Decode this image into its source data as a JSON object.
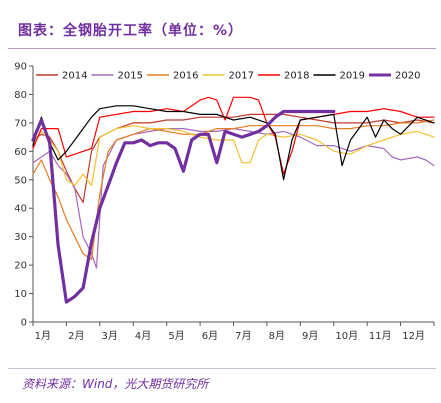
{
  "header": {
    "title": "图表：全钢胎开工率（单位：%）"
  },
  "footer": {
    "source": "资料来源：Wind，光大期货研究所"
  },
  "colors": {
    "title": "#7030a0"
  },
  "chart_data": {
    "type": "line",
    "title": "图表：全钢胎开工率（单位：%）",
    "xlabel": "",
    "ylabel": "",
    "ylim": [
      0,
      90
    ],
    "yticks": [
      0,
      10,
      20,
      30,
      40,
      50,
      60,
      70,
      80,
      90
    ],
    "xlim": [
      1,
      13
    ],
    "xtick_labels": [
      "1月",
      "2月",
      "3月",
      "4月",
      "5月",
      "6月",
      "7月",
      "8月",
      "9月",
      "10月",
      "11月",
      "12月"
    ],
    "grid": false,
    "legend_position": "top",
    "series": [
      {
        "name": "2014",
        "color": "#c0392b",
        "width": 1.2,
        "x": [
          1.0,
          1.25,
          1.5,
          1.75,
          2.0,
          2.25,
          2.5,
          2.75,
          3.0,
          3.5,
          4.0,
          4.5,
          5.0,
          5.5,
          6.0,
          6.5,
          7.0,
          7.5,
          8.0,
          8.5,
          9.0,
          9.5,
          10.0,
          10.5,
          11.0,
          11.5,
          12.0,
          12.5,
          13.0
        ],
        "y": [
          64,
          66,
          65,
          60,
          53,
          47,
          42,
          60,
          65,
          68,
          70,
          70,
          71,
          71,
          72,
          72,
          72,
          73,
          73,
          73,
          72,
          71,
          70,
          70,
          70,
          71,
          70,
          71,
          70
        ]
      },
      {
        "name": "2015",
        "color": "#a569bd",
        "width": 1.2,
        "x": [
          1.0,
          1.25,
          1.5,
          1.75,
          2.0,
          2.25,
          2.5,
          2.75,
          2.9,
          3.1,
          3.5,
          4.0,
          4.5,
          5.0,
          5.5,
          6.0,
          6.5,
          7.0,
          7.5,
          8.0,
          8.5,
          9.0,
          9.5,
          10.0,
          10.5,
          11.0,
          11.5,
          11.75,
          12.0,
          12.5,
          12.75,
          13.0
        ],
        "y": [
          56,
          58,
          60,
          55,
          52,
          47,
          30,
          24,
          19,
          55,
          64,
          66,
          67,
          68,
          68,
          67,
          67,
          68,
          67,
          66,
          67,
          65,
          62,
          62,
          60,
          62,
          61,
          58,
          57,
          58,
          57,
          55
        ]
      },
      {
        "name": "2016",
        "color": "#e67e22",
        "width": 1.2,
        "x": [
          1.0,
          1.25,
          1.5,
          1.75,
          2.0,
          2.25,
          2.5,
          2.75,
          3.0,
          3.25,
          3.5,
          4.0,
          4.5,
          5.0,
          5.5,
          6.0,
          6.5,
          7.0,
          7.5,
          8.0,
          8.5,
          9.0,
          9.5,
          10.0,
          10.5,
          11.0,
          11.5,
          12.0,
          12.5,
          13.0
        ],
        "y": [
          52,
          57,
          50,
          44,
          36,
          30,
          24,
          22,
          45,
          60,
          64,
          66,
          68,
          67,
          66,
          66,
          68,
          68,
          69,
          69,
          69,
          69,
          69,
          68,
          68,
          69,
          69,
          70,
          70,
          71
        ]
      },
      {
        "name": "2017",
        "color": "#f1c232",
        "width": 1.2,
        "x": [
          1.0,
          1.25,
          1.5,
          1.75,
          2.0,
          2.25,
          2.5,
          2.75,
          3.0,
          3.5,
          4.0,
          4.5,
          5.0,
          5.5,
          6.0,
          6.5,
          7.0,
          7.25,
          7.5,
          7.75,
          8.0,
          8.5,
          9.0,
          9.5,
          10.0,
          10.5,
          11.0,
          11.5,
          12.0,
          12.5,
          13.0
        ],
        "y": [
          63,
          67,
          64,
          60,
          50,
          48,
          52,
          48,
          65,
          68,
          69,
          68,
          68,
          67,
          65,
          64,
          64,
          56,
          56,
          64,
          66,
          65,
          66,
          64,
          60,
          59,
          62,
          64,
          66,
          67,
          65
        ]
      },
      {
        "name": "2018",
        "color": "#ff0000",
        "width": 1.2,
        "x": [
          1.0,
          1.25,
          1.5,
          1.75,
          2.0,
          2.25,
          2.5,
          2.75,
          3.0,
          3.5,
          4.0,
          4.5,
          5.0,
          5.5,
          6.0,
          6.25,
          6.5,
          6.75,
          7.0,
          7.25,
          7.5,
          7.75,
          8.0,
          8.25,
          8.5,
          8.75,
          9.0,
          9.5,
          10.0,
          10.5,
          11.0,
          11.5,
          12.0,
          12.5,
          13.0
        ],
        "y": [
          61,
          68,
          68,
          68,
          58,
          59,
          60,
          61,
          72,
          73,
          74,
          74,
          75,
          74,
          78,
          79,
          78,
          71,
          79,
          79,
          79,
          78,
          70,
          65,
          52,
          60,
          71,
          72,
          73,
          74,
          74,
          75,
          74,
          72,
          72
        ]
      },
      {
        "name": "2019",
        "color": "#000000",
        "width": 1.2,
        "x": [
          1.0,
          1.25,
          1.5,
          1.75,
          2.0,
          2.25,
          2.5,
          2.75,
          3.0,
          3.5,
          4.0,
          4.5,
          5.0,
          5.5,
          6.0,
          6.5,
          7.0,
          7.5,
          8.0,
          8.25,
          8.5,
          8.75,
          9.0,
          9.5,
          10.0,
          10.25,
          10.5,
          10.75,
          11.0,
          11.25,
          11.5,
          11.75,
          12.0,
          12.5,
          13.0
        ],
        "y": [
          62,
          72,
          63,
          57,
          60,
          64,
          68,
          72,
          75,
          76,
          76,
          75,
          74,
          74,
          73,
          73,
          71,
          72,
          70,
          66,
          50,
          64,
          71,
          72,
          73,
          55,
          64,
          68,
          72,
          65,
          71,
          68,
          66,
          72,
          70
        ]
      },
      {
        "name": "2020",
        "color": "#7030a0",
        "width": 3.2,
        "x": [
          1.0,
          1.25,
          1.5,
          1.75,
          2.0,
          2.25,
          2.5,
          2.75,
          3.0,
          3.25,
          3.5,
          3.75,
          4.0,
          4.25,
          4.5,
          4.75,
          5.0,
          5.25,
          5.5,
          5.75,
          6.0,
          6.25,
          6.5,
          6.75,
          7.0,
          7.25,
          7.5,
          7.75,
          8.0,
          8.25,
          8.5,
          8.75,
          9.0,
          9.5,
          10.0
        ],
        "y": [
          64,
          71,
          63,
          27,
          7,
          9,
          12,
          28,
          40,
          48,
          56,
          63,
          63,
          64,
          62,
          63,
          63,
          61,
          53,
          64,
          66,
          66,
          56,
          67,
          66,
          65,
          66,
          67,
          69,
          72,
          74,
          74,
          74,
          74,
          74
        ]
      }
    ]
  }
}
